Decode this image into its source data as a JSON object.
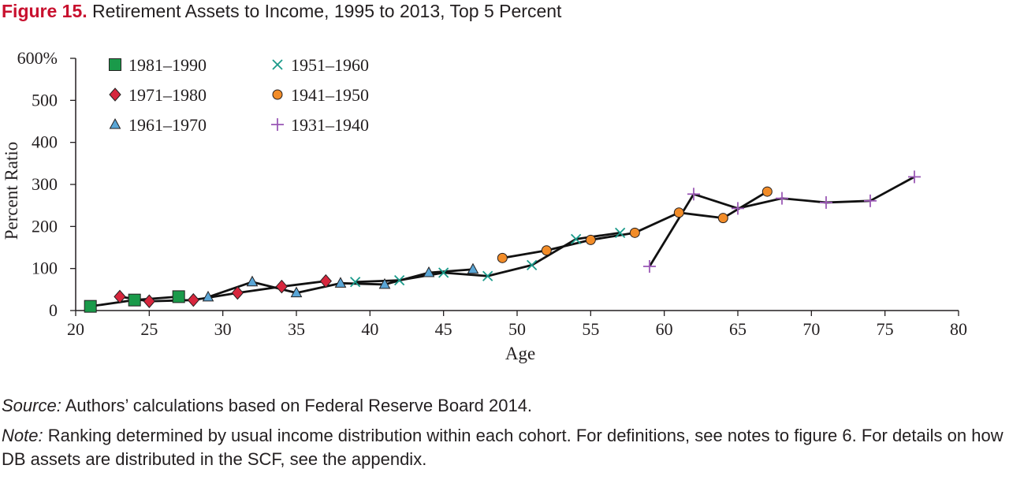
{
  "figure": {
    "label": "Figure 15.",
    "title": "Retirement Assets to Income, 1995 to 2013, Top 5 Percent"
  },
  "chart_data": {
    "type": "line",
    "title": "Retirement Assets to Income, 1995 to 2013, Top 5 Percent",
    "xlabel": "Age",
    "ylabel": "Percent Ratio",
    "xlim": [
      20,
      80
    ],
    "ylim": [
      0,
      600
    ],
    "x_ticks": [
      20,
      25,
      30,
      35,
      40,
      45,
      50,
      55,
      60,
      65,
      70,
      75,
      80
    ],
    "y_ticks": [
      0,
      100,
      200,
      300,
      400,
      500,
      600
    ],
    "y_tick_labels": [
      "0",
      "100",
      "200",
      "300",
      "400",
      "500",
      "600%"
    ],
    "grid": false,
    "legend_position": "top-left",
    "series": [
      {
        "name": "1981–1990",
        "marker": "square",
        "color": "#1a9a4a",
        "x": [
          21,
          24,
          27
        ],
        "y": [
          10,
          25,
          33
        ]
      },
      {
        "name": "1971–1980",
        "marker": "diamond",
        "color": "#d7263d",
        "x": [
          23,
          25,
          28,
          31,
          34,
          37
        ],
        "y": [
          33,
          22,
          25,
          42,
          57,
          70
        ]
      },
      {
        "name": "1961–1970",
        "marker": "triangle",
        "color": "#5aa6d6",
        "x": [
          29,
          32,
          35,
          38,
          41,
          44,
          47
        ],
        "y": [
          32,
          68,
          42,
          65,
          62,
          90,
          98
        ]
      },
      {
        "name": "1951–1960",
        "marker": "x",
        "color": "#1a9a8a",
        "x": [
          39,
          42,
          45,
          48,
          51,
          54,
          57
        ],
        "y": [
          68,
          72,
          90,
          82,
          108,
          170,
          185
        ]
      },
      {
        "name": "1941–1950",
        "marker": "circle",
        "color": "#f28c28",
        "x": [
          49,
          52,
          55,
          58,
          61,
          64,
          67
        ],
        "y": [
          125,
          143,
          168,
          185,
          233,
          220,
          283
        ]
      },
      {
        "name": "1931–1940",
        "marker": "plus",
        "color": "#9b59b6",
        "x": [
          59,
          62,
          65,
          68,
          71,
          74,
          77
        ],
        "y": [
          105,
          277,
          243,
          267,
          257,
          261,
          318
        ]
      }
    ]
  },
  "source": {
    "lead": "Source:",
    "text": " Authors’ calculations based on Federal Reserve Board 2014."
  },
  "note": {
    "lead": "Note:",
    "text": " Ranking determined by usual income distribution within each cohort. For definitions, see notes to figure 6. For details on how DB assets are distributed in the SCF, see the appendix."
  }
}
